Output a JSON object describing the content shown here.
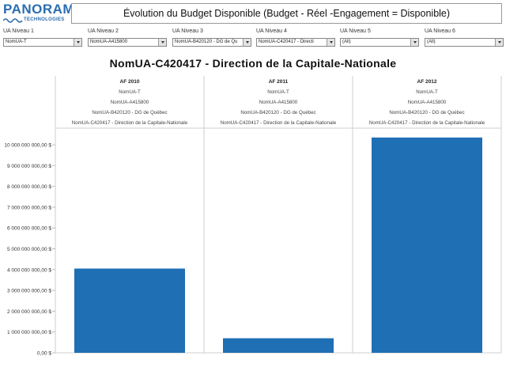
{
  "logo": {
    "main": "PANORAMA",
    "sub": "TECHNOLOGIES"
  },
  "title": "Évolution du Budget Disponible (Budget - Réel -Engagement = Disponible)",
  "filters": [
    {
      "label": "UA Niveau 1",
      "value": "NomUA-T"
    },
    {
      "label": "UA Niveau 2",
      "value": "NomUA-A415800"
    },
    {
      "label": "UA Niveau 3",
      "value": "NomUA-B420120 - DG de Qu"
    },
    {
      "label": "UA Niveau 4",
      "value": "NomUA-C420417 - Directi"
    },
    {
      "label": "UA Niveau 5",
      "value": "(All)"
    },
    {
      "label": "UA Niveau 6",
      "value": "(All)"
    }
  ],
  "chart_data": {
    "type": "bar",
    "title": "NomUA-C420417 - Direction de la Capitale-Nationale",
    "categories": [
      "AF 2010",
      "AF 2011",
      "AF 2012"
    ],
    "header_rows": [
      "NomUA-T",
      "NomUA-A415800",
      "NomUA-B420120 - DG de Québec",
      "NomUA-C420417 - Direction de la Capitale-Nationale"
    ],
    "values": [
      4050000000,
      700000000,
      10350000000
    ],
    "ylim": [
      0,
      10800000000
    ],
    "yticks": [
      0,
      1000000000,
      2000000000,
      3000000000,
      4000000000,
      5000000000,
      6000000000,
      7000000000,
      8000000000,
      9000000000,
      10000000000
    ],
    "ytick_labels": [
      "0,00 $",
      "1 000 000 000,00 $",
      "2 000 000 000,00 $",
      "3 000 000 000,00 $",
      "4 000 000 000,00 $",
      "5 000 000 000,00 $",
      "6 000 000 000,00 $",
      "7 000 000 000,00 $",
      "8 000 000 000,00 $",
      "9 000 000 000,00 $",
      "10 000 000 000,00 $"
    ],
    "bar_color": "#1f6fb4",
    "grid": false
  }
}
